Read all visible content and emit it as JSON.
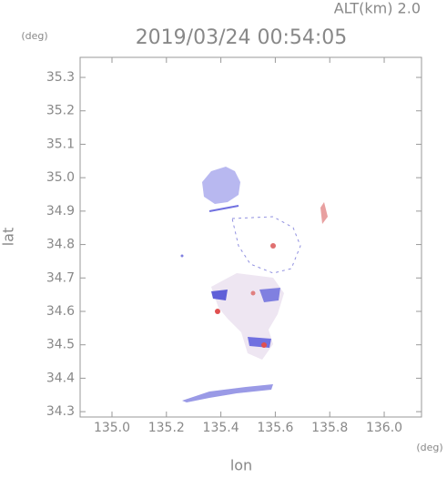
{
  "chart_data": {
    "type": "map",
    "annotation": "ALT(km) 2.0",
    "title": "2019/03/24 00:54:05",
    "y_unit": "(deg)",
    "x_unit": "(deg)",
    "ylabel": "lat",
    "xlabel": "lon",
    "xlim": [
      134.883,
      136.137
    ],
    "ylim": [
      34.284,
      35.36
    ],
    "xticks": [
      {
        "value": 135,
        "label": "135.0"
      },
      135.2,
      135.4,
      135.6,
      135.8,
      {
        "value": 136,
        "label": "136.0"
      }
    ],
    "yticks": [
      34.3,
      34.4,
      34.5,
      34.6,
      34.7,
      34.8,
      34.9,
      {
        "value": 35,
        "label": "35.0"
      },
      35.1,
      35.2,
      35.3
    ]
  }
}
